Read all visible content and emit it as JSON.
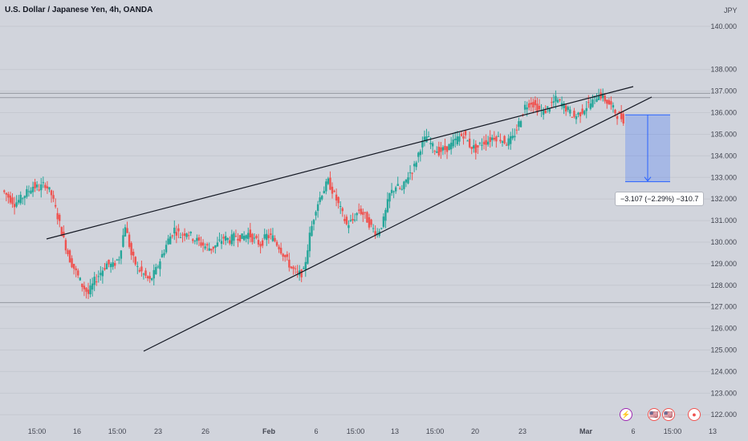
{
  "header": {
    "title": "U.S. Dollar / Japanese Yen, 4h, OANDA",
    "currency": "JPY"
  },
  "colors": {
    "up": "#26a69a",
    "down": "#ef5350",
    "background": "#d1d4dc",
    "grid": "#c5c8d0",
    "trendline": "#131722",
    "measure_fill": "#2962ff",
    "measure_line": "#2962ff"
  },
  "measure": {
    "label": "−3.107 (−2.29%) −310.7"
  },
  "events": [
    {
      "name": "lightning-event-icon",
      "symbol": "⚡"
    },
    {
      "name": "us-flag-event-icon",
      "symbol": "🇺🇸"
    },
    {
      "name": "us-flag-event-icon-2",
      "symbol": "🇺🇸"
    },
    {
      "name": "dividend-event-icon",
      "symbol": "●"
    }
  ],
  "chart_data": {
    "type": "candlestick",
    "title": "U.S. Dollar / Japanese Yen, 4h, OANDA",
    "y_axis_unit": "JPY",
    "ylim": [
      121.6,
      141.0
    ],
    "y_ticks": [
      122,
      123,
      124,
      125,
      126,
      127,
      128,
      129,
      130,
      131,
      132,
      133,
      134,
      135,
      136,
      137,
      138,
      140
    ],
    "x_ticks": [
      "15:00",
      "16",
      "15:00",
      "23",
      "26",
      "Feb",
      "6",
      "15:00",
      "13",
      "15:00",
      "20",
      "23",
      "Mar",
      "6",
      "15:00",
      "13"
    ],
    "price_path": [
      132.4,
      132.1,
      131.8,
      132.0,
      132.3,
      132.6,
      132.5,
      132.7,
      132.2,
      131.2,
      130.1,
      129.2,
      128.6,
      128.0,
      127.6,
      128.2,
      128.6,
      129.0,
      128.9,
      129.3,
      130.8,
      129.4,
      128.8,
      128.5,
      128.2,
      128.7,
      129.4,
      130.1,
      130.6,
      130.3,
      130.5,
      130.2,
      130.0,
      129.8,
      129.7,
      129.9,
      130.2,
      130.1,
      130.3,
      130.2,
      130.4,
      130.1,
      129.9,
      130.3,
      130.2,
      129.8,
      129.3,
      128.8,
      128.5,
      128.6,
      130.3,
      131.6,
      132.3,
      132.8,
      132.2,
      131.5,
      130.8,
      131.0,
      131.5,
      131.2,
      130.7,
      130.4,
      131.0,
      132.2,
      132.6,
      132.4,
      133.1,
      133.5,
      134.4,
      134.9,
      134.4,
      134.2,
      134.3,
      134.5,
      134.8,
      135.0,
      134.5,
      134.3,
      134.6,
      134.7,
      134.9,
      134.8,
      134.6,
      134.8,
      135.5,
      136.3,
      136.5,
      136.2,
      136.0,
      136.3,
      136.6,
      136.4,
      136.1,
      135.8,
      136.0,
      136.3,
      136.5,
      136.9,
      136.6,
      136.3,
      135.9,
      135.7
    ],
    "lines": [
      {
        "name": "resistance-trendline",
        "from": {
          "x": "Jan 13 15:00",
          "y": 130.2
        },
        "to": {
          "x": "Mar 7",
          "y": 137.7
        }
      },
      {
        "name": "support-trendline",
        "from": {
          "x": "Jan 18",
          "y": 124.7
        },
        "to": {
          "x": "Mar 7",
          "y": 136.9
        }
      }
    ],
    "horizontal_levels": [
      136.9,
      136.7,
      127.2
    ],
    "measure": {
      "from": 135.9,
      "to": 132.8,
      "change": -3.107,
      "percent": -2.29,
      "pips": -310.7
    }
  }
}
